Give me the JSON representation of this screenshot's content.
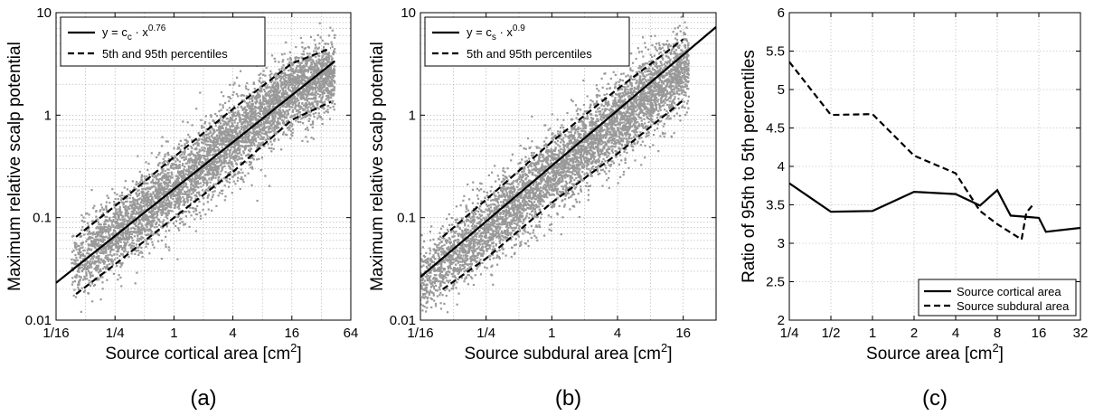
{
  "chart_data": [
    {
      "type": "scatter",
      "panel_label": "(a)",
      "xlabel": {
        "text": "Source cortical area [cm",
        "sup": "2",
        "suffix": "]"
      },
      "ylabel": "Maximum relative scalp potential",
      "xscale": "log2",
      "yscale": "log10",
      "xlim": [
        0.0625,
        64
      ],
      "ylim": [
        0.01,
        10
      ],
      "xticks": [
        0.0625,
        0.25,
        1,
        4,
        16,
        64
      ],
      "xtick_labels": [
        "1/16",
        "1/4",
        "1",
        "4",
        "16",
        "64"
      ],
      "yticks": [
        0.01,
        0.1,
        1,
        10
      ],
      "ytick_labels": [
        "0.01",
        "0.1",
        "1",
        "10"
      ],
      "grid": true,
      "legend_position": "top-left",
      "legend": [
        {
          "style": "solid",
          "parts": [
            "y = c",
            "c",
            " · x",
            "0.76"
          ]
        },
        {
          "style": "dashed",
          "label": "5th and 95th percentiles"
        }
      ],
      "scatter_color": "#999999",
      "scatter_x_range": [
        0.09,
        44
      ],
      "fit": {
        "exponent": 0.76,
        "coefficient": 0.19,
        "x_range": [
          0.0625,
          44
        ]
      },
      "percentiles": {
        "p95": {
          "x": [
            0.1,
            0.25,
            1,
            4,
            16,
            40
          ],
          "y": [
            0.065,
            0.13,
            0.39,
            1.15,
            3.2,
            4.5
          ]
        },
        "p5": {
          "x": [
            0.1,
            0.25,
            1,
            4,
            16,
            40
          ],
          "y": [
            0.018,
            0.035,
            0.1,
            0.28,
            0.9,
            1.35
          ]
        }
      }
    },
    {
      "type": "scatter",
      "panel_label": "(b)",
      "xlabel": {
        "text": "Source subdural area [cm",
        "sup": "2",
        "suffix": "]"
      },
      "ylabel": "Maximum relative scalp potential",
      "xscale": "log2",
      "yscale": "log10",
      "xlim": [
        0.0625,
        32
      ],
      "ylim": [
        0.01,
        10
      ],
      "xticks": [
        0.0625,
        0.25,
        1,
        4,
        16
      ],
      "xtick_labels": [
        "1/16",
        "1/4",
        "1",
        "4",
        "16"
      ],
      "yticks": [
        0.01,
        0.1,
        1,
        10
      ],
      "ytick_labels": [
        "0.01",
        "0.1",
        "1",
        "10"
      ],
      "grid": true,
      "legend_position": "top-left",
      "legend": [
        {
          "style": "solid",
          "parts": [
            "y = c",
            "s",
            " · x",
            "0.9"
          ]
        },
        {
          "style": "dashed",
          "label": "5th and 95th percentiles"
        }
      ],
      "scatter_color": "#999999",
      "scatter_x_range": [
        0.0625,
        18
      ],
      "fit": {
        "exponent": 0.9,
        "coefficient": 0.32,
        "x_range": [
          0.0625,
          32
        ]
      },
      "percentiles": {
        "p95": {
          "x": [
            0.1,
            0.25,
            1,
            4,
            16
          ],
          "y": [
            0.065,
            0.15,
            0.55,
            1.8,
            5.5
          ]
        },
        "p5": {
          "x": [
            0.1,
            0.25,
            1,
            4,
            16
          ],
          "y": [
            0.02,
            0.04,
            0.14,
            0.42,
            1.4
          ]
        }
      }
    },
    {
      "type": "line",
      "panel_label": "(c)",
      "xlabel": {
        "text": "Source area [cm",
        "sup": "2",
        "suffix": "]"
      },
      "ylabel": "Ratio of 95th to 5th percentiles",
      "xscale": "log2",
      "yscale": "linear",
      "xlim": [
        0.25,
        32
      ],
      "ylim": [
        2,
        6
      ],
      "xticks": [
        0.25,
        0.5,
        1,
        2,
        4,
        8,
        16,
        32
      ],
      "xtick_labels": [
        "1/4",
        "1/2",
        "1",
        "2",
        "4",
        "8",
        "16",
        "32"
      ],
      "yticks": [
        2,
        2.5,
        3,
        3.5,
        4,
        4.5,
        5,
        5.5,
        6
      ],
      "ytick_labels": [
        "2",
        "2.5",
        "3",
        "3.5",
        "4",
        "4.5",
        "5",
        "5.5",
        "6"
      ],
      "grid": true,
      "legend_position": "bottom-right",
      "series": [
        {
          "name": "Source cortical area",
          "style": "solid",
          "x": [
            0.25,
            0.5,
            1,
            2,
            4,
            6,
            8,
            10,
            16,
            18,
            32
          ],
          "y": [
            3.78,
            3.41,
            3.42,
            3.67,
            3.64,
            3.49,
            3.69,
            3.36,
            3.33,
            3.15,
            3.2
          ]
        },
        {
          "name": "Source subdural area",
          "style": "dashed",
          "x": [
            0.25,
            0.5,
            1,
            2,
            4,
            6,
            8,
            12,
            13,
            14.5
          ],
          "y": [
            5.36,
            4.67,
            4.68,
            4.14,
            3.91,
            3.42,
            3.25,
            3.05,
            3.4,
            3.5
          ]
        }
      ]
    }
  ]
}
